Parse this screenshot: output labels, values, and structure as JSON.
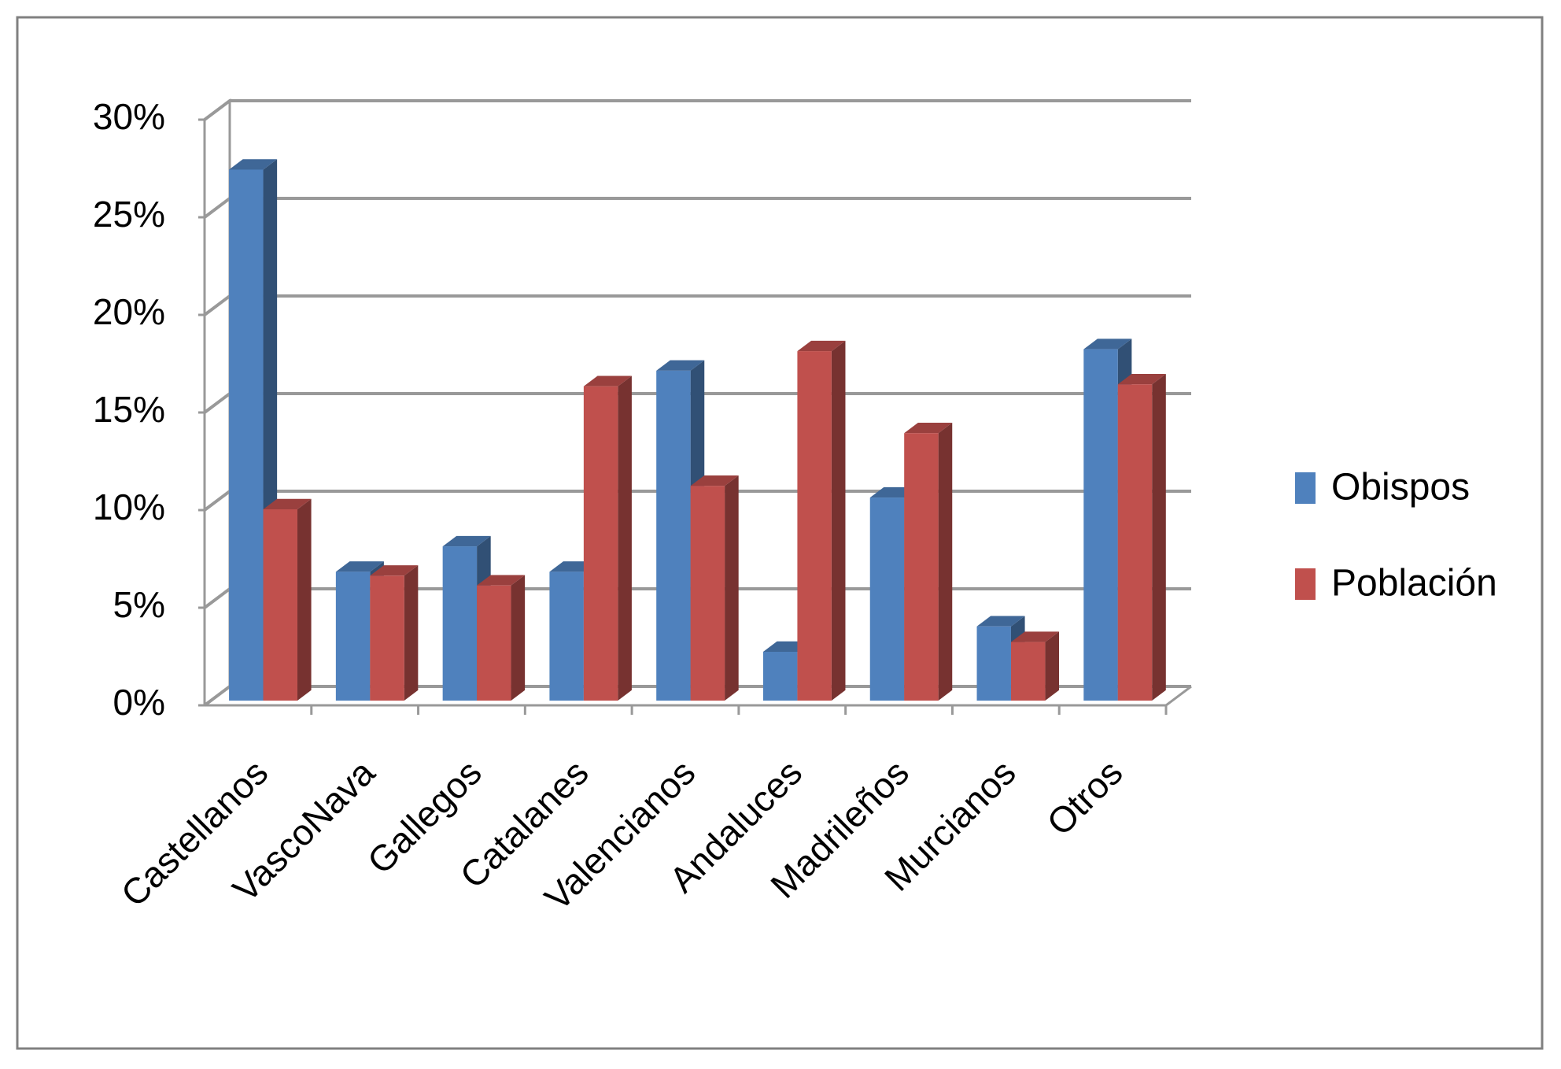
{
  "chart_data": {
    "type": "bar3d",
    "categories": [
      "Castellanos",
      "VascoNava",
      "Gallegos",
      "Catalanes",
      "Valencianos",
      "Andaluces",
      "Madrileños",
      "Murcianos",
      "Otros"
    ],
    "series": [
      {
        "name": "Obispos",
        "color": "#4f81bd",
        "values": [
          27.2,
          6.6,
          7.9,
          6.6,
          16.9,
          2.5,
          10.4,
          3.8,
          18.0
        ]
      },
      {
        "name": "Población",
        "color": "#c0504d",
        "values": [
          9.8,
          6.4,
          5.9,
          16.1,
          11.0,
          17.9,
          13.7,
          3.0,
          16.2
        ]
      }
    ],
    "ylim": [
      0,
      30
    ],
    "yticks": [
      {
        "value": 0,
        "label": "0%"
      },
      {
        "value": 5,
        "label": "5%"
      },
      {
        "value": 10,
        "label": "10%"
      },
      {
        "value": 15,
        "label": "15%"
      },
      {
        "value": 20,
        "label": "20%"
      },
      {
        "value": 25,
        "label": "25%"
      },
      {
        "value": 30,
        "label": "30%"
      }
    ],
    "grid": true,
    "legend": "right"
  }
}
